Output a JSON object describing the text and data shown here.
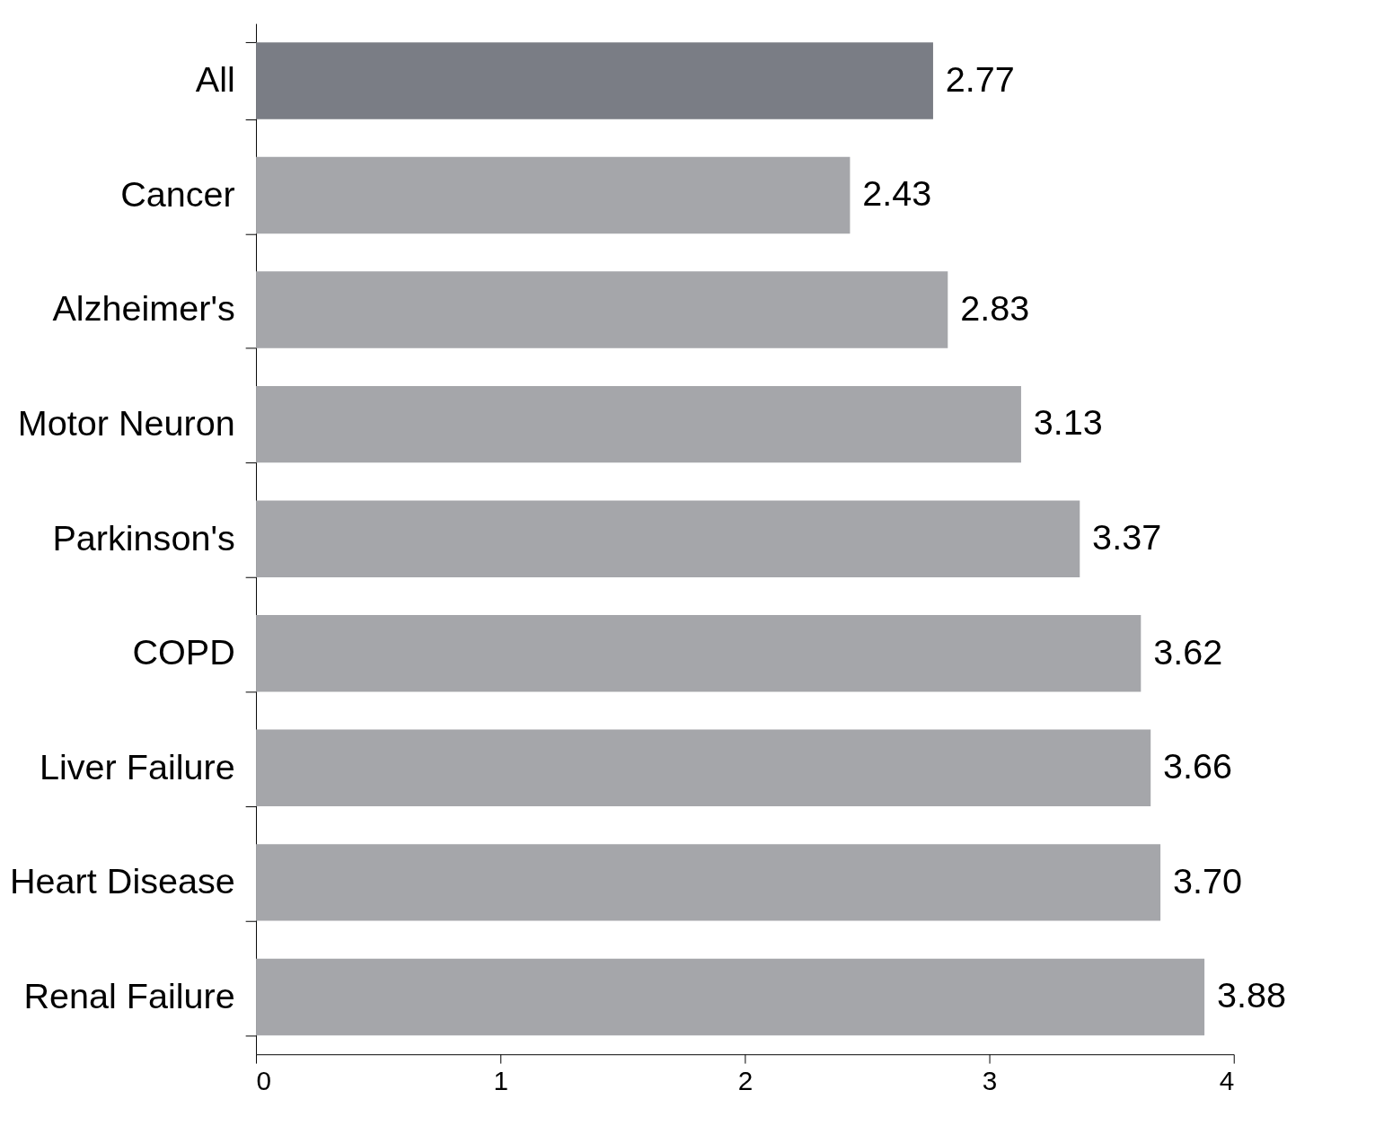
{
  "chart_data": {
    "type": "bar",
    "orientation": "horizontal",
    "categories": [
      "All",
      "Cancer",
      "Alzheimer's",
      "Motor Neuron",
      "Parkinson's",
      "COPD",
      "Liver Failure",
      "Heart Disease",
      "Renal Failure"
    ],
    "values": [
      2.77,
      2.43,
      2.83,
      3.13,
      3.37,
      3.62,
      3.66,
      3.7,
      3.88
    ],
    "colors": [
      "#7a7d85",
      "#a5a6aa",
      "#a5a6aa",
      "#a5a6aa",
      "#a5a6aa",
      "#a5a6aa",
      "#a5a6aa",
      "#a5a6aa",
      "#a5a6aa"
    ],
    "value_labels": [
      "2.77",
      "2.43",
      "2.83",
      "3.13",
      "3.37",
      "3.62",
      "3.66",
      "3.70",
      "3.88"
    ],
    "xlim": [
      0,
      4
    ],
    "xticks": [
      0,
      1,
      2,
      3,
      4
    ],
    "grid": false
  }
}
